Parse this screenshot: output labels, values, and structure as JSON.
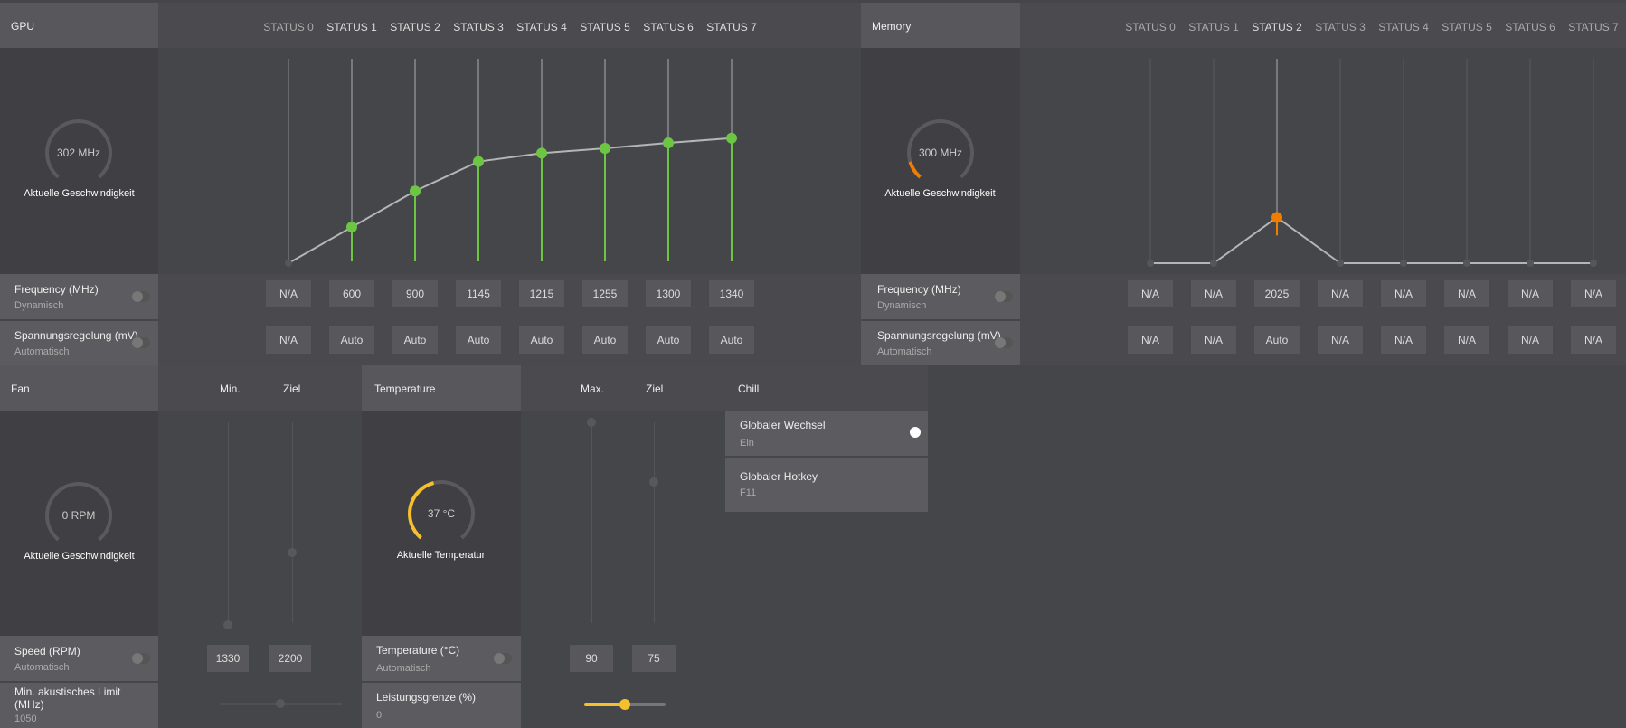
{
  "gpu": {
    "title": "GPU",
    "gauge_value": "302 MHz",
    "gauge_label": "Aktuelle Geschwindigkeit",
    "gauge_fill": 0,
    "statuses": [
      "STATUS 0",
      "STATUS 1",
      "STATUS 2",
      "STATUS 3",
      "STATUS 4",
      "STATUS 5",
      "STATUS 6",
      "STATUS 7"
    ],
    "freq_label": "Frequency (MHz)",
    "freq_mode": "Dynamisch",
    "freq_values": [
      "N/A",
      "600",
      "900",
      "1145",
      "1215",
      "1255",
      "1300",
      "1340"
    ],
    "volt_label": "Spannungsregelung (mV)",
    "volt_mode": "Automatisch",
    "volt_values": [
      "N/A",
      "Auto",
      "Auto",
      "Auto",
      "Auto",
      "Auto",
      "Auto",
      "Auto"
    ],
    "accent": "#6cc644"
  },
  "memory": {
    "title": "Memory",
    "gauge_value": "300 MHz",
    "gauge_label": "Aktuelle Geschwindigkeit",
    "gauge_fill": 0.12,
    "statuses": [
      "STATUS 0",
      "STATUS 1",
      "STATUS 2",
      "STATUS 3",
      "STATUS 4",
      "STATUS 5",
      "STATUS 6",
      "STATUS 7"
    ],
    "freq_label": "Frequency (MHz)",
    "freq_mode": "Dynamisch",
    "freq_values": [
      "N/A",
      "N/A",
      "2025",
      "N/A",
      "N/A",
      "N/A",
      "N/A",
      "N/A"
    ],
    "volt_label": "Spannungsregelung (mV)",
    "volt_mode": "Automatisch",
    "volt_values": [
      "N/A",
      "N/A",
      "Auto",
      "N/A",
      "N/A",
      "N/A",
      "N/A",
      "N/A"
    ],
    "accent": "#f07c00"
  },
  "chart_data": [
    {
      "type": "line",
      "title": "GPU",
      "categories": [
        "STATUS 0",
        "STATUS 1",
        "STATUS 2",
        "STATUS 3",
        "STATUS 4",
        "STATUS 5",
        "STATUS 6",
        "STATUS 7"
      ],
      "values": [
        null,
        600,
        900,
        1145,
        1215,
        1255,
        1300,
        1340
      ],
      "grid": false
    },
    {
      "type": "line",
      "title": "Memory",
      "categories": [
        "STATUS 0",
        "STATUS 1",
        "STATUS 2",
        "STATUS 3",
        "STATUS 4",
        "STATUS 5",
        "STATUS 6",
        "STATUS 7"
      ],
      "values": [
        null,
        null,
        2025,
        null,
        null,
        null,
        null,
        null
      ],
      "grid": false
    }
  ],
  "fan": {
    "title": "Fan",
    "col_min": "Min.",
    "col_target": "Ziel",
    "gauge_value": "0 RPM",
    "gauge_label": "Aktuelle Geschwindigkeit",
    "gauge_fill": 0,
    "speed_label": "Speed (RPM)",
    "speed_mode": "Automatisch",
    "min_value": "1330",
    "target_value": "2200",
    "limit_label": "Min. akustisches Limit (MHz)",
    "limit_value": "1050"
  },
  "temperature": {
    "title": "Temperature",
    "col_max": "Max.",
    "col_target": "Ziel",
    "gauge_value": "37 °C",
    "gauge_label": "Aktuelle Temperatur",
    "gauge_fill": 0.45,
    "temp_label": "Temperature (°C)",
    "temp_mode": "Automatisch",
    "max_value": "90",
    "target_value": "75",
    "power_label": "Leistungsgrenze (%)",
    "power_value": "0",
    "power_slider_fraction": 0.5,
    "accent": "#f5c02c"
  },
  "chill": {
    "title": "Chill",
    "switch_label": "Globaler Wechsel",
    "switch_state": "Ein",
    "hotkey_label": "Globaler Hotkey",
    "hotkey_value": "F11"
  }
}
